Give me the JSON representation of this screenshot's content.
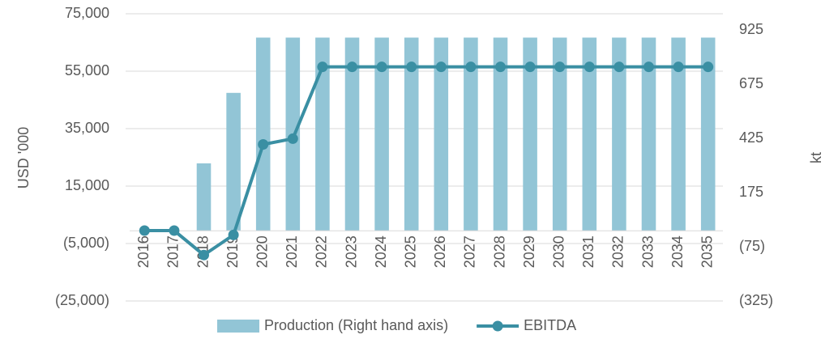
{
  "chart_data": {
    "type": "bar-line",
    "y_label": "USD '000",
    "y2_label": "kt",
    "categories": [
      "2016",
      "2017",
      "2018",
      "2019",
      "2020",
      "2021",
      "2022",
      "2023",
      "2024",
      "2025",
      "2026",
      "2027",
      "2028",
      "2029",
      "2030",
      "2031",
      "2032",
      "2033",
      "2034",
      "2035"
    ],
    "series": [
      {
        "name": "Production (Right hand axis)",
        "type": "bar",
        "axis": "y2",
        "color": "#92c5d6",
        "values": [
          0,
          0,
          310,
          635,
          890,
          890,
          890,
          890,
          890,
          890,
          890,
          890,
          890,
          890,
          890,
          890,
          890,
          890,
          890,
          890
        ]
      },
      {
        "name": "EBITDA",
        "type": "line",
        "color": "#3a8fa3",
        "values": [
          -500,
          -500,
          -9000,
          -2000,
          29500,
          31500,
          56500,
          56500,
          56500,
          56500,
          56500,
          56500,
          56500,
          56500,
          56500,
          56500,
          56500,
          56500,
          56500,
          56500
        ]
      }
    ],
    "ylim": [
      -25000,
      75000
    ],
    "yticks": [
      {
        "value": -25000,
        "label": "(25,000)"
      },
      {
        "value": -5000,
        "label": "(5,000)"
      },
      {
        "value": 15000,
        "label": "15,000"
      },
      {
        "value": 35000,
        "label": "35,000"
      },
      {
        "value": 55000,
        "label": "55,000"
      },
      {
        "value": 75000,
        "label": "75,000"
      }
    ],
    "y2lim": [
      -325,
      1000
    ],
    "y2ticks": [
      {
        "value": -325,
        "label": "(325)"
      },
      {
        "value": -75,
        "label": "(75)"
      },
      175,
      425,
      675,
      925
    ],
    "grid": true,
    "legend": "bottom"
  }
}
